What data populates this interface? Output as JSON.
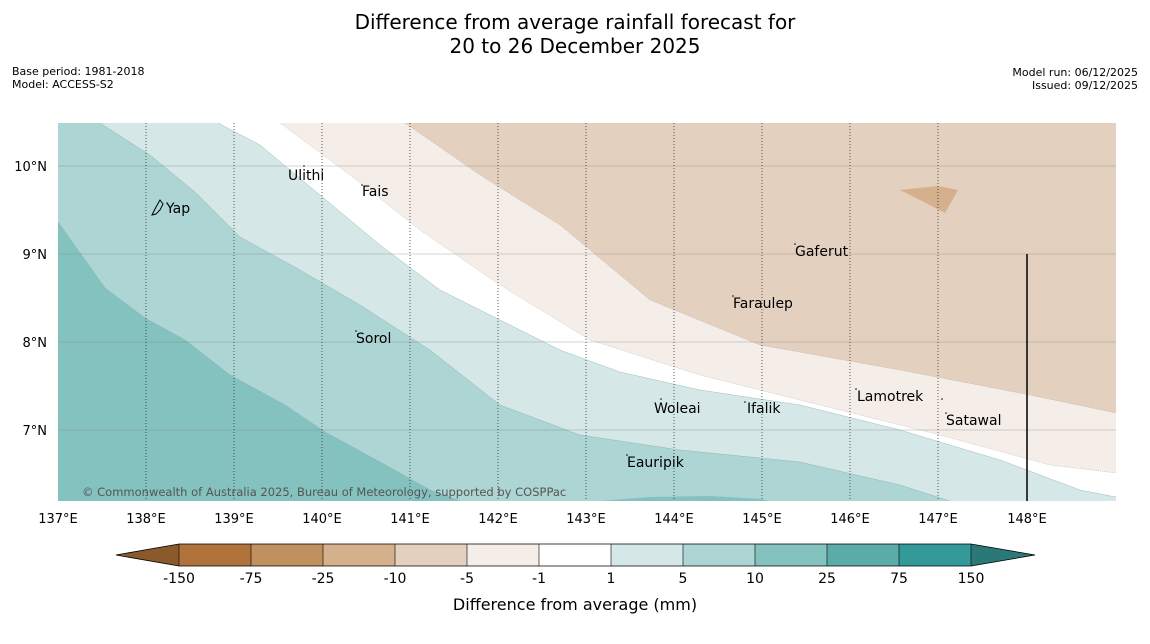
{
  "title": {
    "line1": "Difference from average rainfall forecast for",
    "line2": "20 to 26 December 2025"
  },
  "meta_left": {
    "base_period": "Base period: 1981-2018",
    "model": "Model: ACCESS-S2"
  },
  "meta_right": {
    "model_run": "Model run: 06/12/2025",
    "issued": "Issued: 09/12/2025"
  },
  "map": {
    "x_ticks": [
      "137°E",
      "138°E",
      "139°E",
      "140°E",
      "141°E",
      "142°E",
      "143°E",
      "144°E",
      "145°E",
      "146°E",
      "147°E",
      "148°E"
    ],
    "y_ticks": [
      "10°N",
      "9°N",
      "8°N",
      "7°N"
    ],
    "locations": {
      "yap": "Yap",
      "ulithi": "Ulithi",
      "fais": "Fais",
      "sorol": "Sorol",
      "gaferut": "Gaferut",
      "faraulep": "Faraulep",
      "woleai": "Woleai",
      "ifalik": "Ifalik",
      "eauripik": "Eauripik",
      "lamotrek": "Lamotrek",
      "satawal": "Satawal"
    },
    "copyright": "© Commonwealth of Australia 2025, Bureau of Meteorology, supported by COSPPac"
  },
  "colorbar": {
    "ticks": [
      "-150",
      "-75",
      "-25",
      "-10",
      "-5",
      "-1",
      "1",
      "5",
      "10",
      "25",
      "75",
      "150"
    ],
    "colors": {
      "under": "#8a5a2a",
      "c1": "#b0733b",
      "c2": "#c0905e",
      "c3": "#d4b08d",
      "c4": "#e3d0bf",
      "c5": "#f4ede8",
      "c6": "#ffffff",
      "c7": "#d5e8e7",
      "c8": "#acd5d4",
      "c9": "#84c2c0",
      "c10": "#5aabaa",
      "c11": "#349999",
      "over": "#2a7878"
    },
    "label": "Difference from average (mm)"
  }
}
